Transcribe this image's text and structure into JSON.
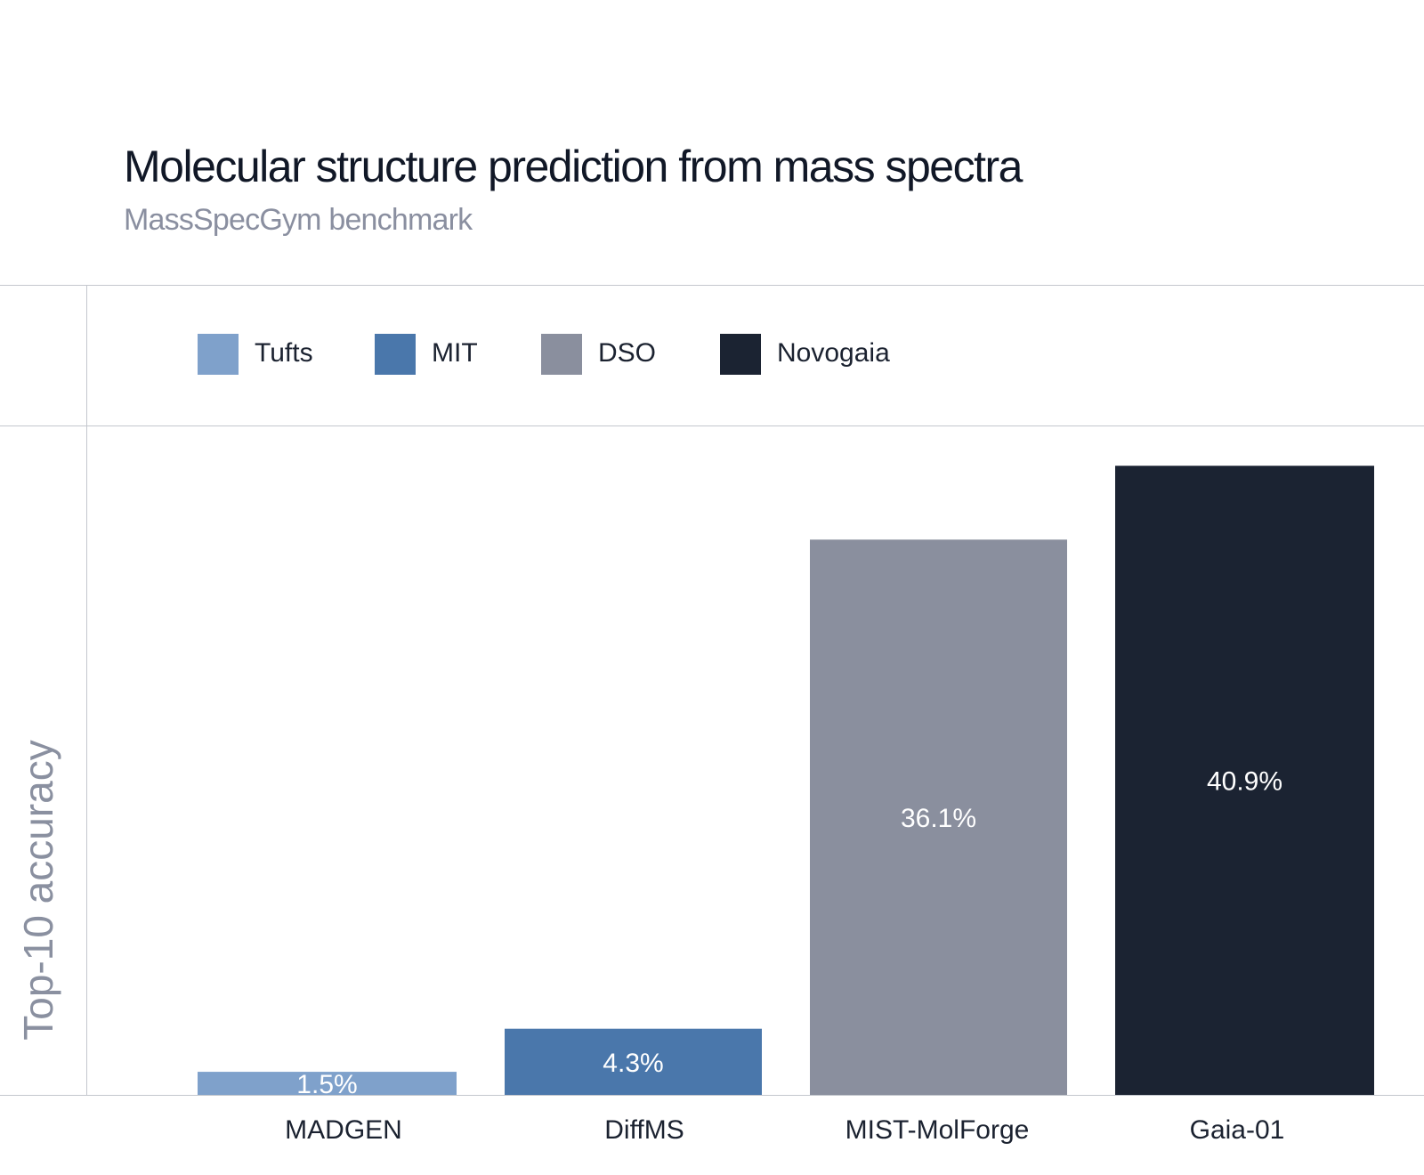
{
  "chart_data": {
    "type": "bar",
    "title": "Molecular structure prediction from mass spectra",
    "subtitle": "MassSpecGym benchmark",
    "ylabel": "Top-10 accuracy",
    "xlabel": "",
    "categories": [
      "MADGEN",
      "DiffMS",
      "MIST-MolForge",
      "Gaia-01"
    ],
    "values": [
      1.5,
      4.3,
      36.1,
      40.9
    ],
    "value_labels": [
      "1.5%",
      "4.3%",
      "36.1%",
      "40.9%"
    ],
    "bar_series": [
      "Tufts",
      "MIT",
      "DSO",
      "Novogaia"
    ],
    "ylim": [
      0,
      40.9
    ],
    "grid": false,
    "legend_placement": "top-left",
    "legend": [
      {
        "name": "Tufts",
        "color": "#7fa1cb"
      },
      {
        "name": "MIT",
        "color": "#4a77ab"
      },
      {
        "name": "DSO",
        "color": "#8a8f9e"
      },
      {
        "name": "Novogaia",
        "color": "#1b2332"
      }
    ]
  }
}
